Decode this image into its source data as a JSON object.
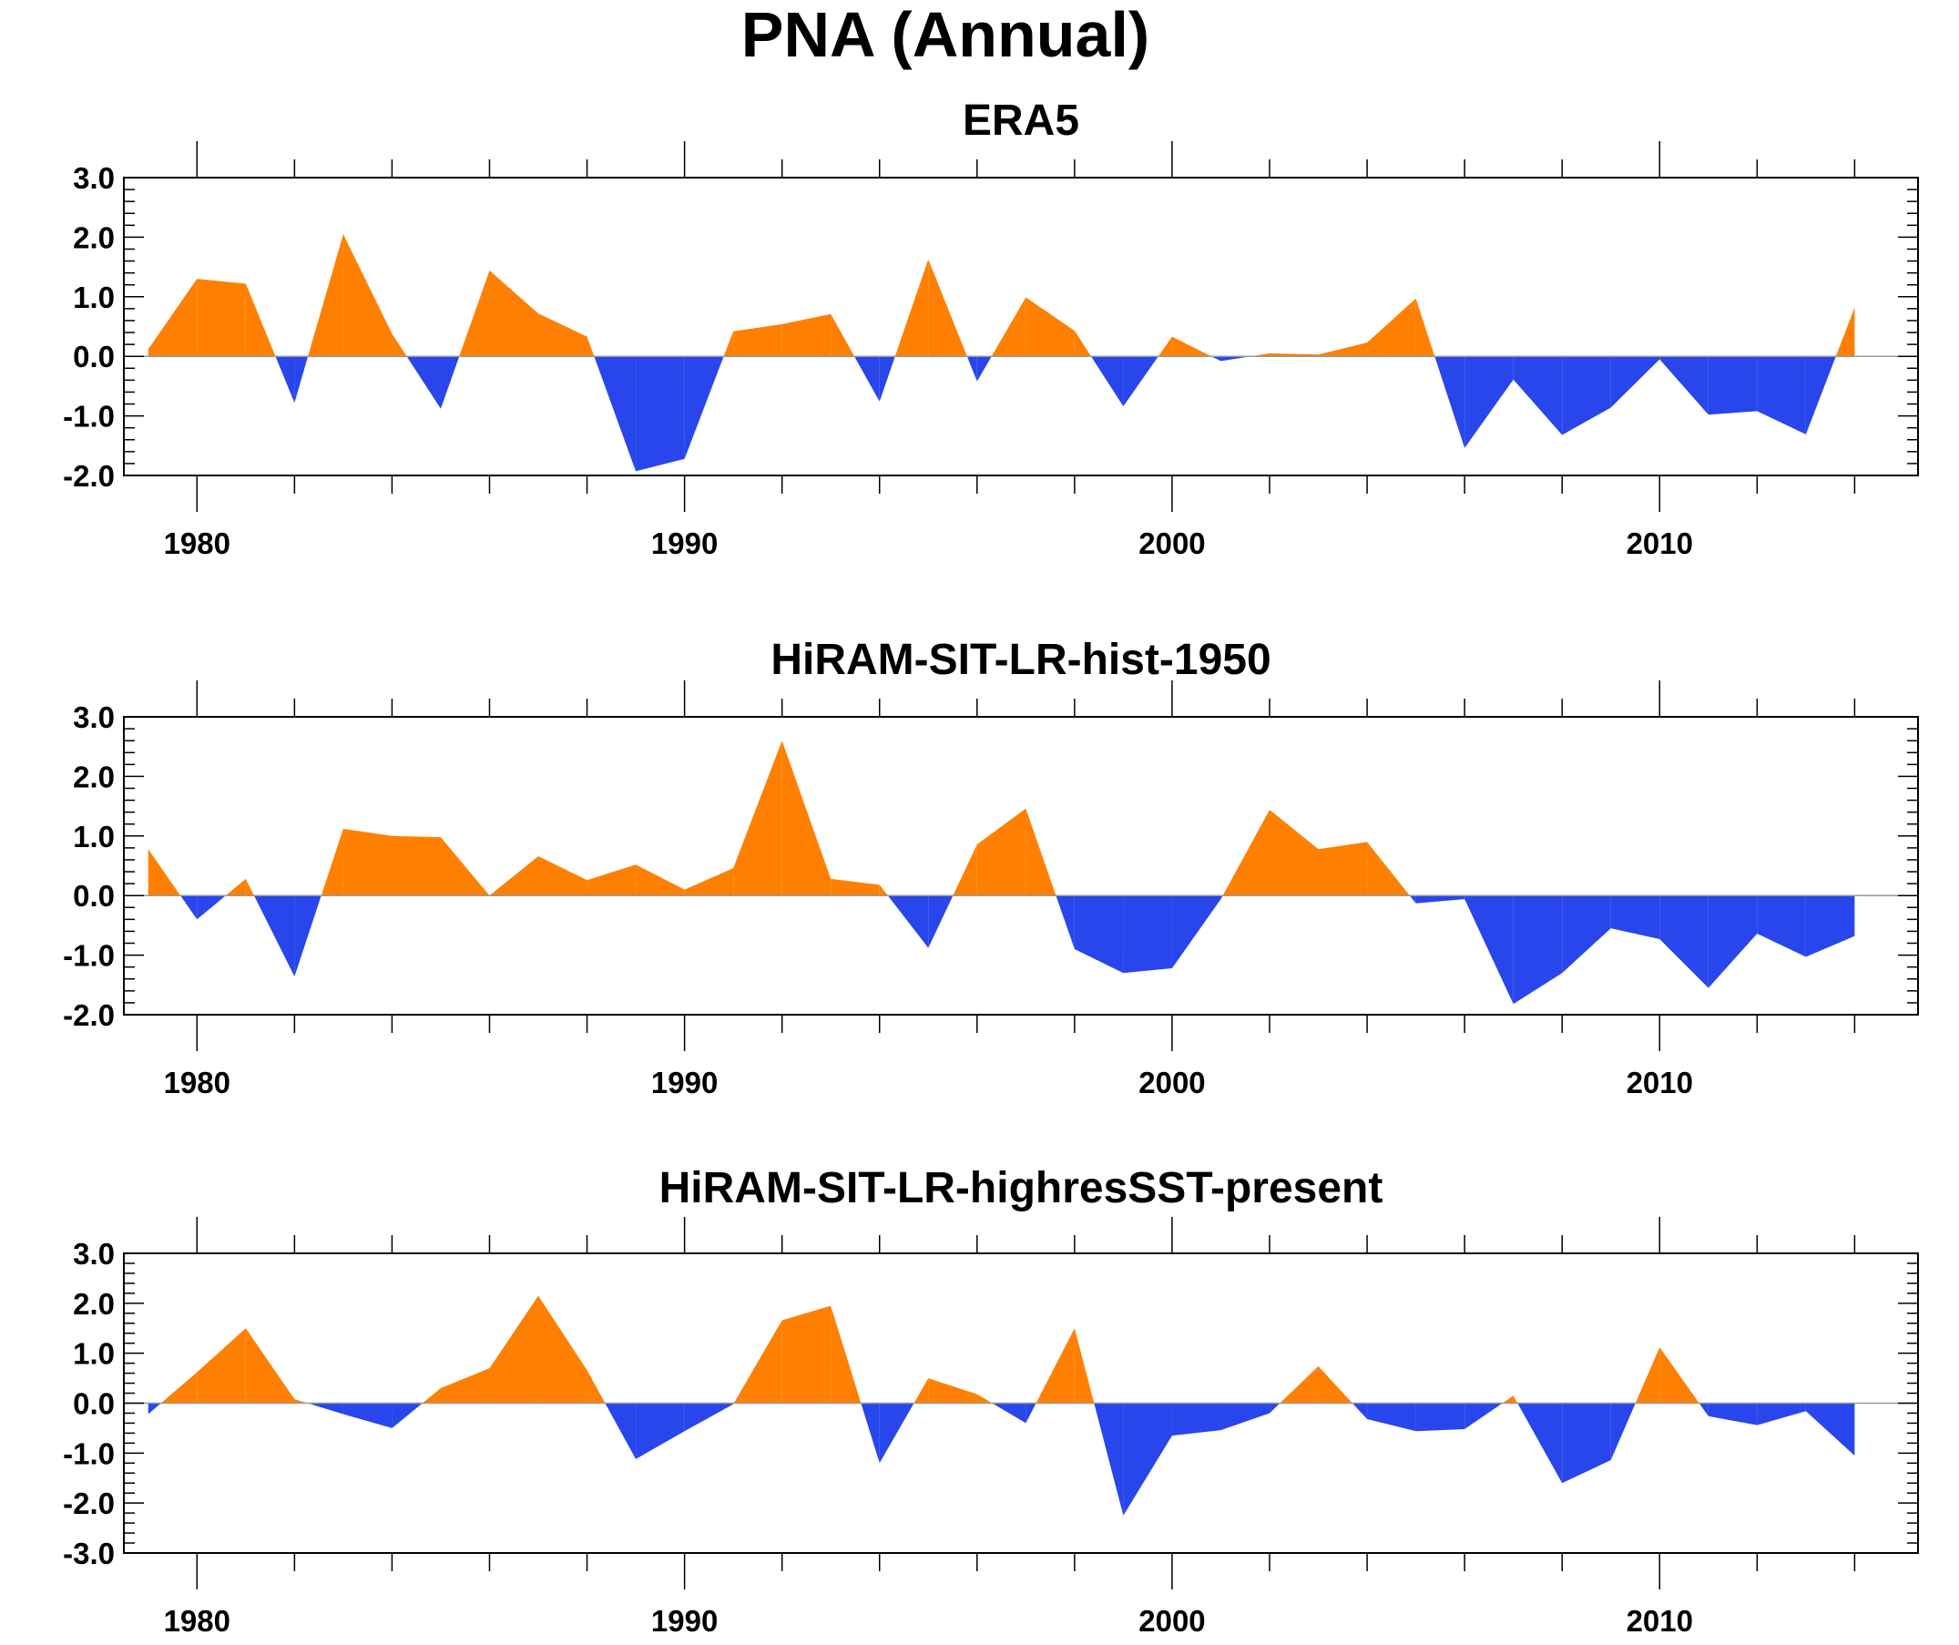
{
  "title": "PNA (Annual)",
  "colors": {
    "positive": "#ff8000",
    "negative": "#2846ec",
    "axis": "#000000",
    "zero_line": "#999999"
  },
  "chart_data": [
    {
      "type": "area",
      "title": "ERA5",
      "x": [
        1979,
        1980,
        1981,
        1982,
        1983,
        1984,
        1985,
        1986,
        1987,
        1988,
        1989,
        1990,
        1991,
        1992,
        1993,
        1994,
        1995,
        1996,
        1997,
        1998,
        1999,
        2000,
        2001,
        2002,
        2003,
        2004,
        2005,
        2006,
        2007,
        2008,
        2009,
        2010,
        2011,
        2012,
        2013,
        2014
      ],
      "values": [
        0.12,
        1.3,
        1.22,
        -0.78,
        2.05,
        0.38,
        -0.88,
        1.44,
        0.72,
        0.33,
        -1.93,
        -1.72,
        0.42,
        0.54,
        0.71,
        -0.76,
        1.63,
        -0.42,
        0.99,
        0.43,
        -0.84,
        0.33,
        -0.08,
        0.05,
        0.03,
        0.23,
        0.97,
        -1.54,
        -0.39,
        -1.32,
        -0.86,
        -0.05,
        -0.98,
        -0.92,
        -1.31,
        0.82
      ],
      "ylim": [
        -2.0,
        3.0
      ],
      "yticks": [
        "3.0",
        "2.0",
        "1.0",
        "0.0",
        "-1.0",
        "-2.0"
      ],
      "xlim": [
        1978.5,
        2015.3
      ],
      "xticklabels": [
        "1980",
        "1990",
        "2000",
        "2010"
      ]
    },
    {
      "type": "area",
      "title": "HiRAM-SIT-LR-hist-1950",
      "x": [
        1979,
        1980,
        1981,
        1982,
        1983,
        1984,
        1985,
        1986,
        1987,
        1988,
        1989,
        1990,
        1991,
        1992,
        1993,
        1994,
        1995,
        1996,
        1997,
        1998,
        1999,
        2000,
        2001,
        2002,
        2003,
        2004,
        2005,
        2006,
        2007,
        2008,
        2009,
        2010,
        2011,
        2012,
        2013,
        2014
      ],
      "values": [
        0.78,
        -0.4,
        0.28,
        -1.36,
        1.12,
        1.0,
        0.98,
        0.0,
        0.66,
        0.26,
        0.52,
        0.1,
        0.46,
        2.6,
        0.28,
        0.18,
        -0.88,
        0.86,
        1.46,
        -0.9,
        -1.3,
        -1.22,
        -0.06,
        1.44,
        0.78,
        0.9,
        -0.13,
        -0.06,
        -1.82,
        -1.3,
        -0.55,
        -0.73,
        -1.55,
        -0.64,
        -1.03,
        -0.68
      ],
      "ylim": [
        -2.0,
        3.0
      ],
      "yticks": [
        "3.0",
        "2.0",
        "1.0",
        "0.0",
        "-1.0",
        "-2.0"
      ],
      "xlim": [
        1978.5,
        2015.3
      ],
      "xticklabels": [
        "1980",
        "1990",
        "2000",
        "2010"
      ]
    },
    {
      "type": "area",
      "title": "HiRAM-SIT-LR-highresSST-present",
      "x": [
        1979,
        1980,
        1981,
        1982,
        1983,
        1984,
        1985,
        1986,
        1987,
        1988,
        1989,
        1990,
        1991,
        1992,
        1993,
        1994,
        1995,
        1996,
        1997,
        1998,
        1999,
        2000,
        2001,
        2002,
        2003,
        2004,
        2005,
        2006,
        2007,
        2008,
        2009,
        2010,
        2011,
        2012,
        2013,
        2014
      ],
      "values": [
        -0.22,
        0.62,
        1.5,
        0.08,
        -0.22,
        -0.5,
        0.3,
        0.7,
        2.15,
        0.66,
        -1.12,
        -0.56,
        -0.02,
        1.66,
        1.95,
        -1.2,
        0.5,
        0.18,
        -0.4,
        1.5,
        -2.25,
        -0.65,
        -0.54,
        -0.2,
        0.74,
        -0.32,
        -0.56,
        -0.52,
        0.15,
        -1.6,
        -1.14,
        1.12,
        -0.26,
        -0.44,
        -0.16,
        -1.05
      ],
      "ylim": [
        -3.0,
        3.0
      ],
      "yticks": [
        "3.0",
        "2.0",
        "1.0",
        "0.0",
        "-1.0",
        "-2.0",
        "-3.0"
      ],
      "xlim": [
        1978.5,
        2015.3
      ],
      "xticklabels": [
        "1980",
        "1990",
        "2000",
        "2010"
      ]
    }
  ]
}
